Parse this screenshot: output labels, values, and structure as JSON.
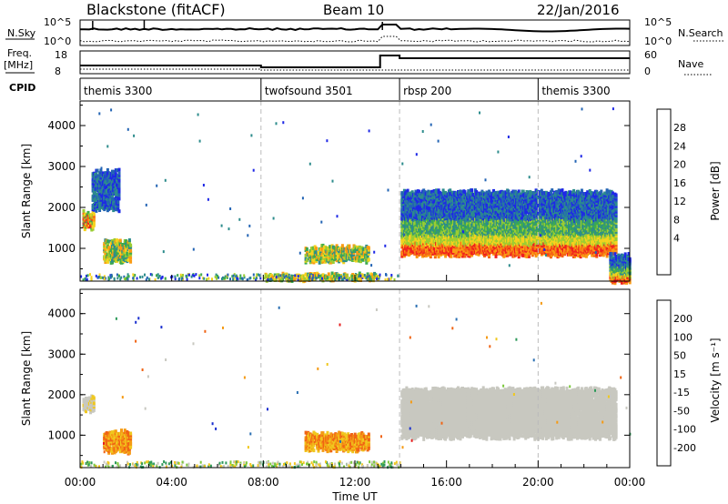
{
  "header": {
    "station": "Blackstone (fitACF)",
    "beam": "Beam 10",
    "date": "22/Jan/2016"
  },
  "noise_panel": {
    "left_label": "N.Sky",
    "left_ticks": [
      "10^5",
      "10^0"
    ],
    "right_label": "N.Search",
    "right_ticks": [
      "10^5",
      "10^0"
    ]
  },
  "freq_panel": {
    "left_label_1": "Freq.",
    "left_label_2": "[MHz]",
    "left_ticks": [
      "18",
      "8"
    ],
    "right_label": "Nave",
    "right_ticks": [
      "60",
      "0"
    ]
  },
  "cpid": {
    "label": "CPID",
    "segments": [
      {
        "name": "themis 3300",
        "start_h": 0,
        "end_h": 7.9
      },
      {
        "name": "twofsound 3501",
        "start_h": 7.9,
        "end_h": 13.95
      },
      {
        "name": "rbsp 200",
        "start_h": 13.95,
        "end_h": 20.0
      },
      {
        "name": "themis 3300",
        "start_h": 20.0,
        "end_h": 24
      }
    ]
  },
  "power_colorbar": {
    "label": "Power [dB]",
    "ticks": [
      "28",
      "24",
      "20",
      "16",
      "12",
      "8",
      "4"
    ],
    "colors": [
      "#1e28e6",
      "#2364b4",
      "#2d8c8c",
      "#3caa50",
      "#9bcd32",
      "#f5d21e",
      "#fa9b14",
      "#f56414",
      "#f01e1e"
    ]
  },
  "velocity_colorbar": {
    "label": "Velocity [m s⁻¹]",
    "ticks": [
      "200",
      "100",
      "50",
      "15",
      "-15",
      "-50",
      "-100",
      "-200"
    ],
    "colors": [
      "#1a2fcf",
      "#2a6fb2",
      "#2e9a5a",
      "#7cc83c",
      "#c8c8c0",
      "#f0c81e",
      "#f59b14",
      "#f06414",
      "#e61e1e"
    ]
  },
  "chart_data": [
    {
      "type": "heatmap",
      "panel": "power",
      "ylabel": "Slant Range [km]",
      "yticks": [
        "1000",
        "2000",
        "3000",
        "4000"
      ],
      "ylim": [
        200,
        4600
      ],
      "xlim_hours": [
        0,
        24
      ],
      "features": [
        {
          "t": [
            0.1,
            0.6
          ],
          "r": [
            1550,
            1950
          ],
          "level": "high"
        },
        {
          "t": [
            0.5,
            1.7
          ],
          "r": [
            2000,
            2950
          ],
          "level": "low"
        },
        {
          "t": [
            1.0,
            2.2
          ],
          "r": [
            750,
            1250
          ],
          "level": "mid"
        },
        {
          "t": [
            8.0,
            13.0
          ],
          "r": [
            300,
            420
          ],
          "level": "mid"
        },
        {
          "t": [
            9.8,
            12.6
          ],
          "r": [
            750,
            1100
          ],
          "level": "mid"
        },
        {
          "t": [
            14.0,
            23.4
          ],
          "r": [
            900,
            2450
          ],
          "level": "high"
        },
        {
          "t": [
            23.1,
            24.0
          ],
          "r": [
            250,
            900
          ],
          "level": "high"
        }
      ]
    },
    {
      "type": "heatmap",
      "panel": "velocity",
      "ylabel": "Slant Range [km]",
      "yticks": [
        "1000",
        "2000",
        "3000",
        "4000"
      ],
      "ylim": [
        200,
        4600
      ],
      "xlim_hours": [
        0,
        24
      ],
      "features": [
        {
          "t": [
            0.1,
            0.6
          ],
          "r": [
            1650,
            2000
          ],
          "vel": "-15 to -50"
        },
        {
          "t": [
            1.0,
            2.2
          ],
          "r": [
            650,
            1150
          ],
          "vel": "-50 to -100"
        },
        {
          "t": [
            9.8,
            12.6
          ],
          "r": [
            700,
            1100
          ],
          "vel": "-50 to -100"
        },
        {
          "t": [
            14.0,
            23.4
          ],
          "r": [
            1000,
            2200
          ],
          "vel": "-15 to 15"
        }
      ]
    }
  ],
  "xaxis": {
    "ticks": [
      "00:00",
      "04:00",
      "08:00",
      "12:00",
      "16:00",
      "20:00",
      "00:00"
    ],
    "label": "Time UT"
  }
}
